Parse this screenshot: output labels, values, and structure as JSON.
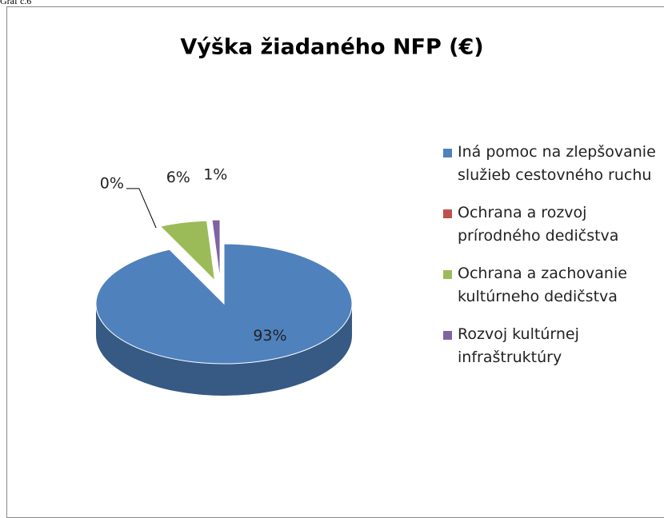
{
  "caption": "Graf č.6",
  "chart_data": {
    "type": "pie",
    "title": "Výška žiadaného NFP (€)",
    "categories": [
      "Iná pomoc na zlepšovanie služieb cestovného ruchu",
      "Ochrana a rozvoj prírodného dedičstva",
      "Ochrana a zachovanie kultúrneho dedičstva",
      "Rozvoj kultúrnej infraštruktúry"
    ],
    "values": [
      93,
      0,
      6,
      1
    ],
    "value_labels": [
      "93%",
      "0%",
      "6%",
      "1%"
    ],
    "colors": [
      "#4f81bd",
      "#c0504d",
      "#9bbb59",
      "#8064a2"
    ],
    "legend": "right"
  }
}
